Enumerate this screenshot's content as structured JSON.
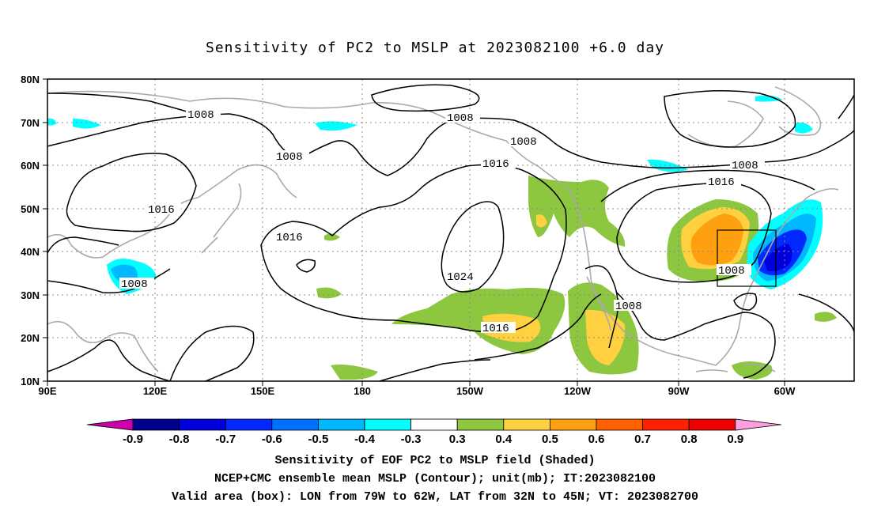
{
  "title": "Sensitivity of PC2 to MSLP at 2023082100 +6.0 day",
  "axes": {
    "x_ticks": [
      "90E",
      "120E",
      "150E",
      "180",
      "150W",
      "120W",
      "90W",
      "60W"
    ],
    "y_ticks": [
      "80N",
      "70N",
      "60N",
      "50N",
      "40N",
      "30N",
      "20N",
      "10N"
    ]
  },
  "colorbar": {
    "labels": [
      "-0.9",
      "-0.8",
      "-0.7",
      "-0.6",
      "-0.5",
      "-0.4",
      "-0.3",
      "0.3",
      "0.4",
      "0.5",
      "0.6",
      "0.7",
      "0.8",
      "0.9"
    ],
    "colors": [
      "#00008b",
      "#0000dd",
      "#0028ff",
      "#0070ff",
      "#00b8ff",
      "#00ffff",
      "#ffffff",
      "#8dc63f",
      "#ffd040",
      "#ffa010",
      "#ff6000",
      "#ff2000",
      "#ee0000"
    ],
    "low_arrow_color": "#cc00aa",
    "high_arrow_color": "#ff9fdf"
  },
  "contour_labels": [
    "1008",
    "1008",
    "1008",
    "1016",
    "1016",
    "1008",
    "1016",
    "1016",
    "1008",
    "1024",
    "1016",
    "1008",
    "1008"
  ],
  "caption": {
    "line1": "Sensitivity of EOF PC2 to MSLP field (Shaded)",
    "line2": "NCEP+CMC ensemble mean MSLP (Contour); unit(mb); IT:2023082100",
    "line3": "Valid area (box): LON from 79W to 62W, LAT from 32N to 45N; VT: 2023082700"
  }
}
